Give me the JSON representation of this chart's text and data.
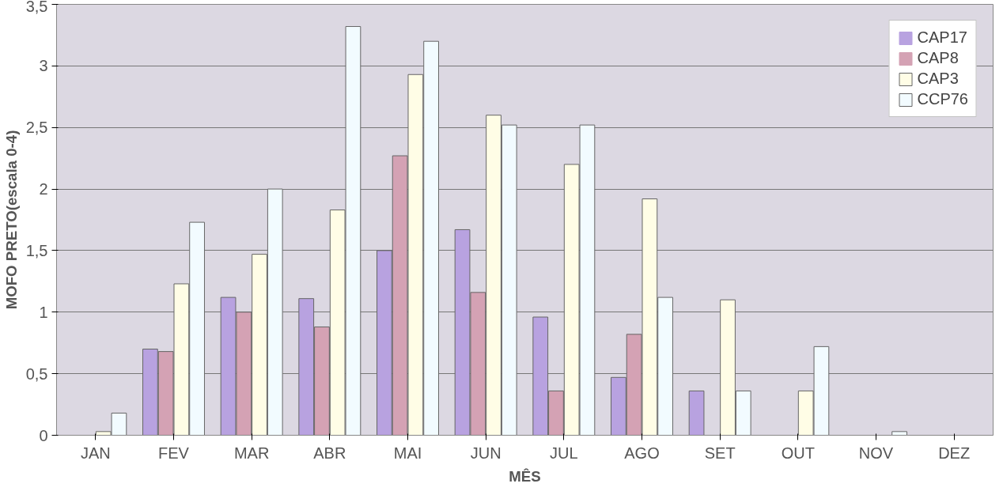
{
  "chart_data": {
    "type": "bar",
    "xlabel": "MÊS",
    "ylabel": "MOFO PRETO(escala 0-4)",
    "categories": [
      "JAN",
      "FEV",
      "MAR",
      "ABR",
      "MAI",
      "JUN",
      "JUL",
      "AGO",
      "SET",
      "OUT",
      "NOV",
      "DEZ"
    ],
    "series": [
      {
        "name": "CAP17",
        "color": "#b8a2e0",
        "values": [
          0,
          0.7,
          1.12,
          1.11,
          1.5,
          1.67,
          0.96,
          0.47,
          0.36,
          0,
          0,
          0
        ]
      },
      {
        "name": "CAP8",
        "color": "#d4a2b4",
        "values": [
          0,
          0.68,
          1.0,
          0.88,
          2.27,
          1.16,
          0.36,
          0.82,
          0,
          0,
          0,
          0
        ]
      },
      {
        "name": "CAP3",
        "color": "#fffde6",
        "values": [
          0.03,
          1.23,
          1.47,
          1.83,
          2.93,
          2.6,
          2.2,
          1.92,
          1.1,
          0.36,
          0,
          0
        ]
      },
      {
        "name": "CCP76",
        "color": "#f2fbff",
        "values": [
          0.18,
          1.73,
          2.0,
          3.32,
          3.2,
          2.52,
          2.52,
          1.12,
          0.36,
          0.72,
          0.03,
          0
        ]
      }
    ],
    "ylim": [
      0,
      3.5
    ],
    "yticks": [
      0,
      {
        "value": 0.5,
        "label": "0,5"
      },
      1,
      {
        "value": 1.5,
        "label": "1,5"
      },
      2,
      {
        "value": 2.5,
        "label": "2,5"
      },
      3,
      {
        "value": 3.5,
        "label": "3,5"
      }
    ],
    "grid": "y",
    "legend": "top right"
  }
}
